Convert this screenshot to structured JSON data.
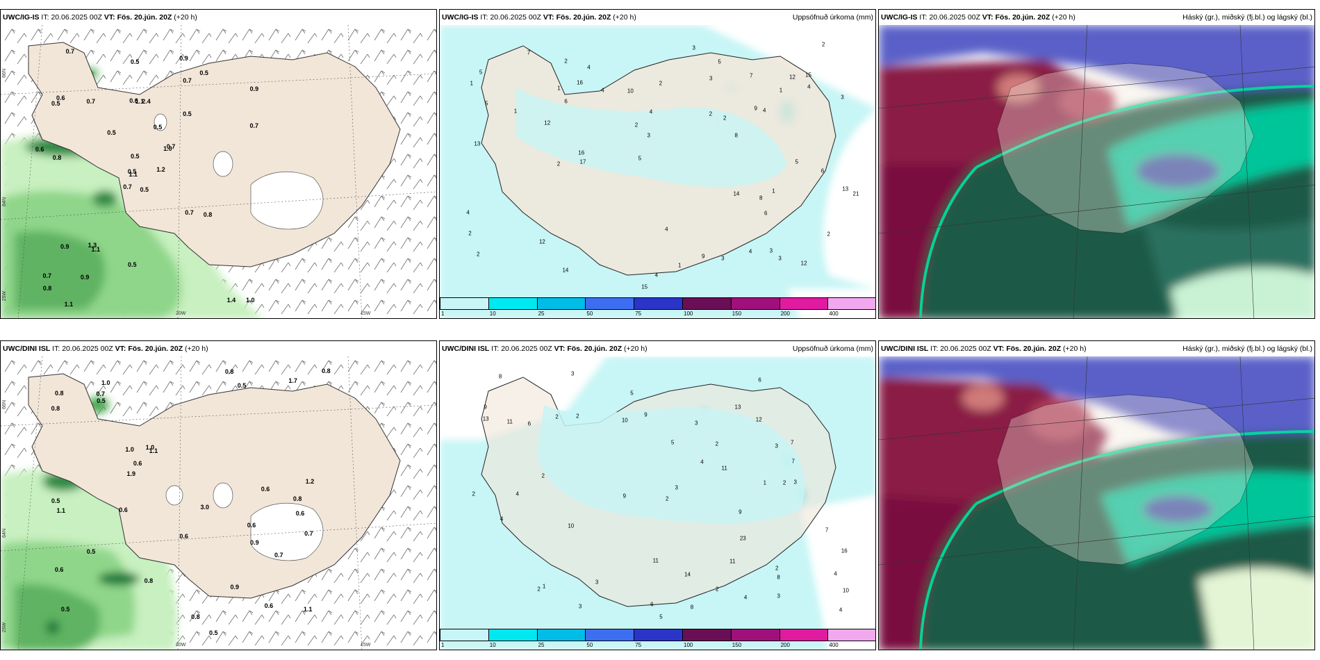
{
  "panels": {
    "top_left": {
      "model": "UWC/IG-IS",
      "it_label": "IT:",
      "it": "20.06.2025 00Z",
      "vt_label": "VT:",
      "vt": "Fös. 20.jún. 20Z",
      "lead": "(+20 h)",
      "title_right": ""
    },
    "top_mid": {
      "model": "UWC/IG-IS",
      "it_label": "IT:",
      "it": "20.06.2025 00Z",
      "vt_label": "VT:",
      "vt": "Fös. 20.jún. 20Z",
      "lead": "(+20 h)",
      "title_right": "Uppsöfnuð úrkoma (mm)"
    },
    "top_right": {
      "model": "UWC/IG-IS",
      "it_label": "IT:",
      "it": "20.06.2025 00Z",
      "vt_label": "VT:",
      "vt": "Fös. 20.jún. 20Z",
      "lead": "(+20 h)",
      "title_right": "Háský (gr.), miðský (fj.bl.) og lágský (bl.)"
    },
    "bot_left": {
      "model": "UWC/DINI ISL",
      "it_label": "IT:",
      "it": "20.06.2025 00Z",
      "vt_label": "VT:",
      "vt": "Fös. 20.jún. 20Z",
      "lead": "(+20 h)",
      "title_right": ""
    },
    "bot_mid": {
      "model": "UWC/DINI ISL",
      "it_label": "IT:",
      "it": "20.06.2025 00Z",
      "vt_label": "VT:",
      "vt": "Fös. 20.jún. 20Z",
      "lead": "(+20 h)",
      "title_right": "Uppsöfnuð úrkoma (mm)"
    },
    "bot_right": {
      "model": "UWC/DINI ISL",
      "it_label": "IT:",
      "it": "20.06.2025 00Z",
      "vt_label": "VT:",
      "vt": "Fös. 20.jún. 20Z",
      "lead": "(+20 h)",
      "title_right": "Háský (gr.), miðský (fj.bl.) og lágský (bl.)"
    }
  },
  "coords": {
    "lat66": "66N",
    "lat64": "64N",
    "lon25": "25W",
    "lon20": "20W",
    "lon15": "15W"
  },
  "legend": {
    "labels": [
      "1",
      "10",
      "25",
      "50",
      "75",
      "100",
      "150",
      "200",
      "400"
    ],
    "colors": [
      "#c8f6f8",
      "#00e8f0",
      "#00bde8",
      "#3e6ef0",
      "#2a35c8",
      "#6a0f55",
      "#a0107a",
      "#e01ba0",
      "#f2a8ee"
    ]
  },
  "colors": {
    "land": "#f2e6d9",
    "precip_light": "#c8f5f5",
    "precip_medium": "#00e0e8",
    "green_light": "#c8f0c0",
    "green_mid": "#7cc87a",
    "green_dark": "#1f7a3a",
    "cloud_high": "#1f5a47",
    "cloud_teal": "#00d69b",
    "cloud_mid": "#5a60c8",
    "cloud_low": "#7a1040"
  },
  "top_left_labels": [
    "0.5",
    "0.5",
    "1.1",
    "0.7",
    "1.0",
    "1.1",
    "0.9",
    "2.4",
    "0.7",
    "1.2",
    "0.7",
    "1.0",
    "0.8",
    "0.9",
    "0.7",
    "0.5",
    "1.1",
    "0.6",
    "0.5",
    "0.9",
    "0.5",
    "0.8",
    "0.9",
    "1.1",
    "0.7",
    "0.8",
    "0.6",
    "0.5",
    "0.6",
    "0.7",
    "0.7",
    "0.5",
    "0.5",
    "0.5",
    "0.7",
    "0.5",
    "1.3",
    "1.4"
  ],
  "bot_left_labels": [
    "0.6",
    "0.6",
    "0.5",
    "1.0",
    "1.1",
    "0.6",
    "0.6",
    "0.5",
    "1.0",
    "0.5",
    "0.8",
    "0.5",
    "0.8",
    "1.1",
    "0.8",
    "1.2",
    "0.6",
    "3.0",
    "1.0",
    "0.5",
    "0.8",
    "1.7",
    "1.9",
    "0.7",
    "0.8",
    "0.7",
    "0.9",
    "1.1",
    "0.5",
    "0.6",
    "0.8",
    "0.9",
    "0.6",
    "0.6",
    "0.8",
    "0.7"
  ],
  "top_mid_values": [
    "5",
    "6",
    "8",
    "4",
    "12",
    "15",
    "14",
    "17",
    "15",
    "21",
    "13",
    "16",
    "9",
    "12",
    "13",
    "14",
    "16",
    "10",
    "12",
    "9",
    "3",
    "6",
    "3",
    "4",
    "7",
    "12",
    "4",
    "5",
    "7",
    "2",
    "4",
    "3",
    "2",
    "1",
    "5",
    "2",
    "4",
    "3",
    "3",
    "2",
    "4",
    "1",
    "2",
    "3",
    "1",
    "3",
    "1",
    "5",
    "2",
    "1",
    "4",
    "2",
    "5",
    "8",
    "2",
    "4",
    "2",
    "6",
    "4",
    "2",
    "1"
  ],
  "bot_mid_values": [
    "5",
    "8",
    "9",
    "7",
    "6",
    "9",
    "8",
    "13",
    "2",
    "4",
    "2",
    "3",
    "9",
    "11",
    "10",
    "12",
    "16",
    "11",
    "14",
    "23",
    "13",
    "11",
    "11",
    "9",
    "7",
    "6",
    "8",
    "4",
    "3",
    "5",
    "2",
    "4",
    "6",
    "3",
    "10",
    "10",
    "3",
    "2",
    "4",
    "3",
    "2",
    "2",
    "1",
    "3",
    "2",
    "5",
    "4",
    "7",
    "3",
    "2",
    "1",
    "4",
    "2",
    "3",
    "2"
  ]
}
